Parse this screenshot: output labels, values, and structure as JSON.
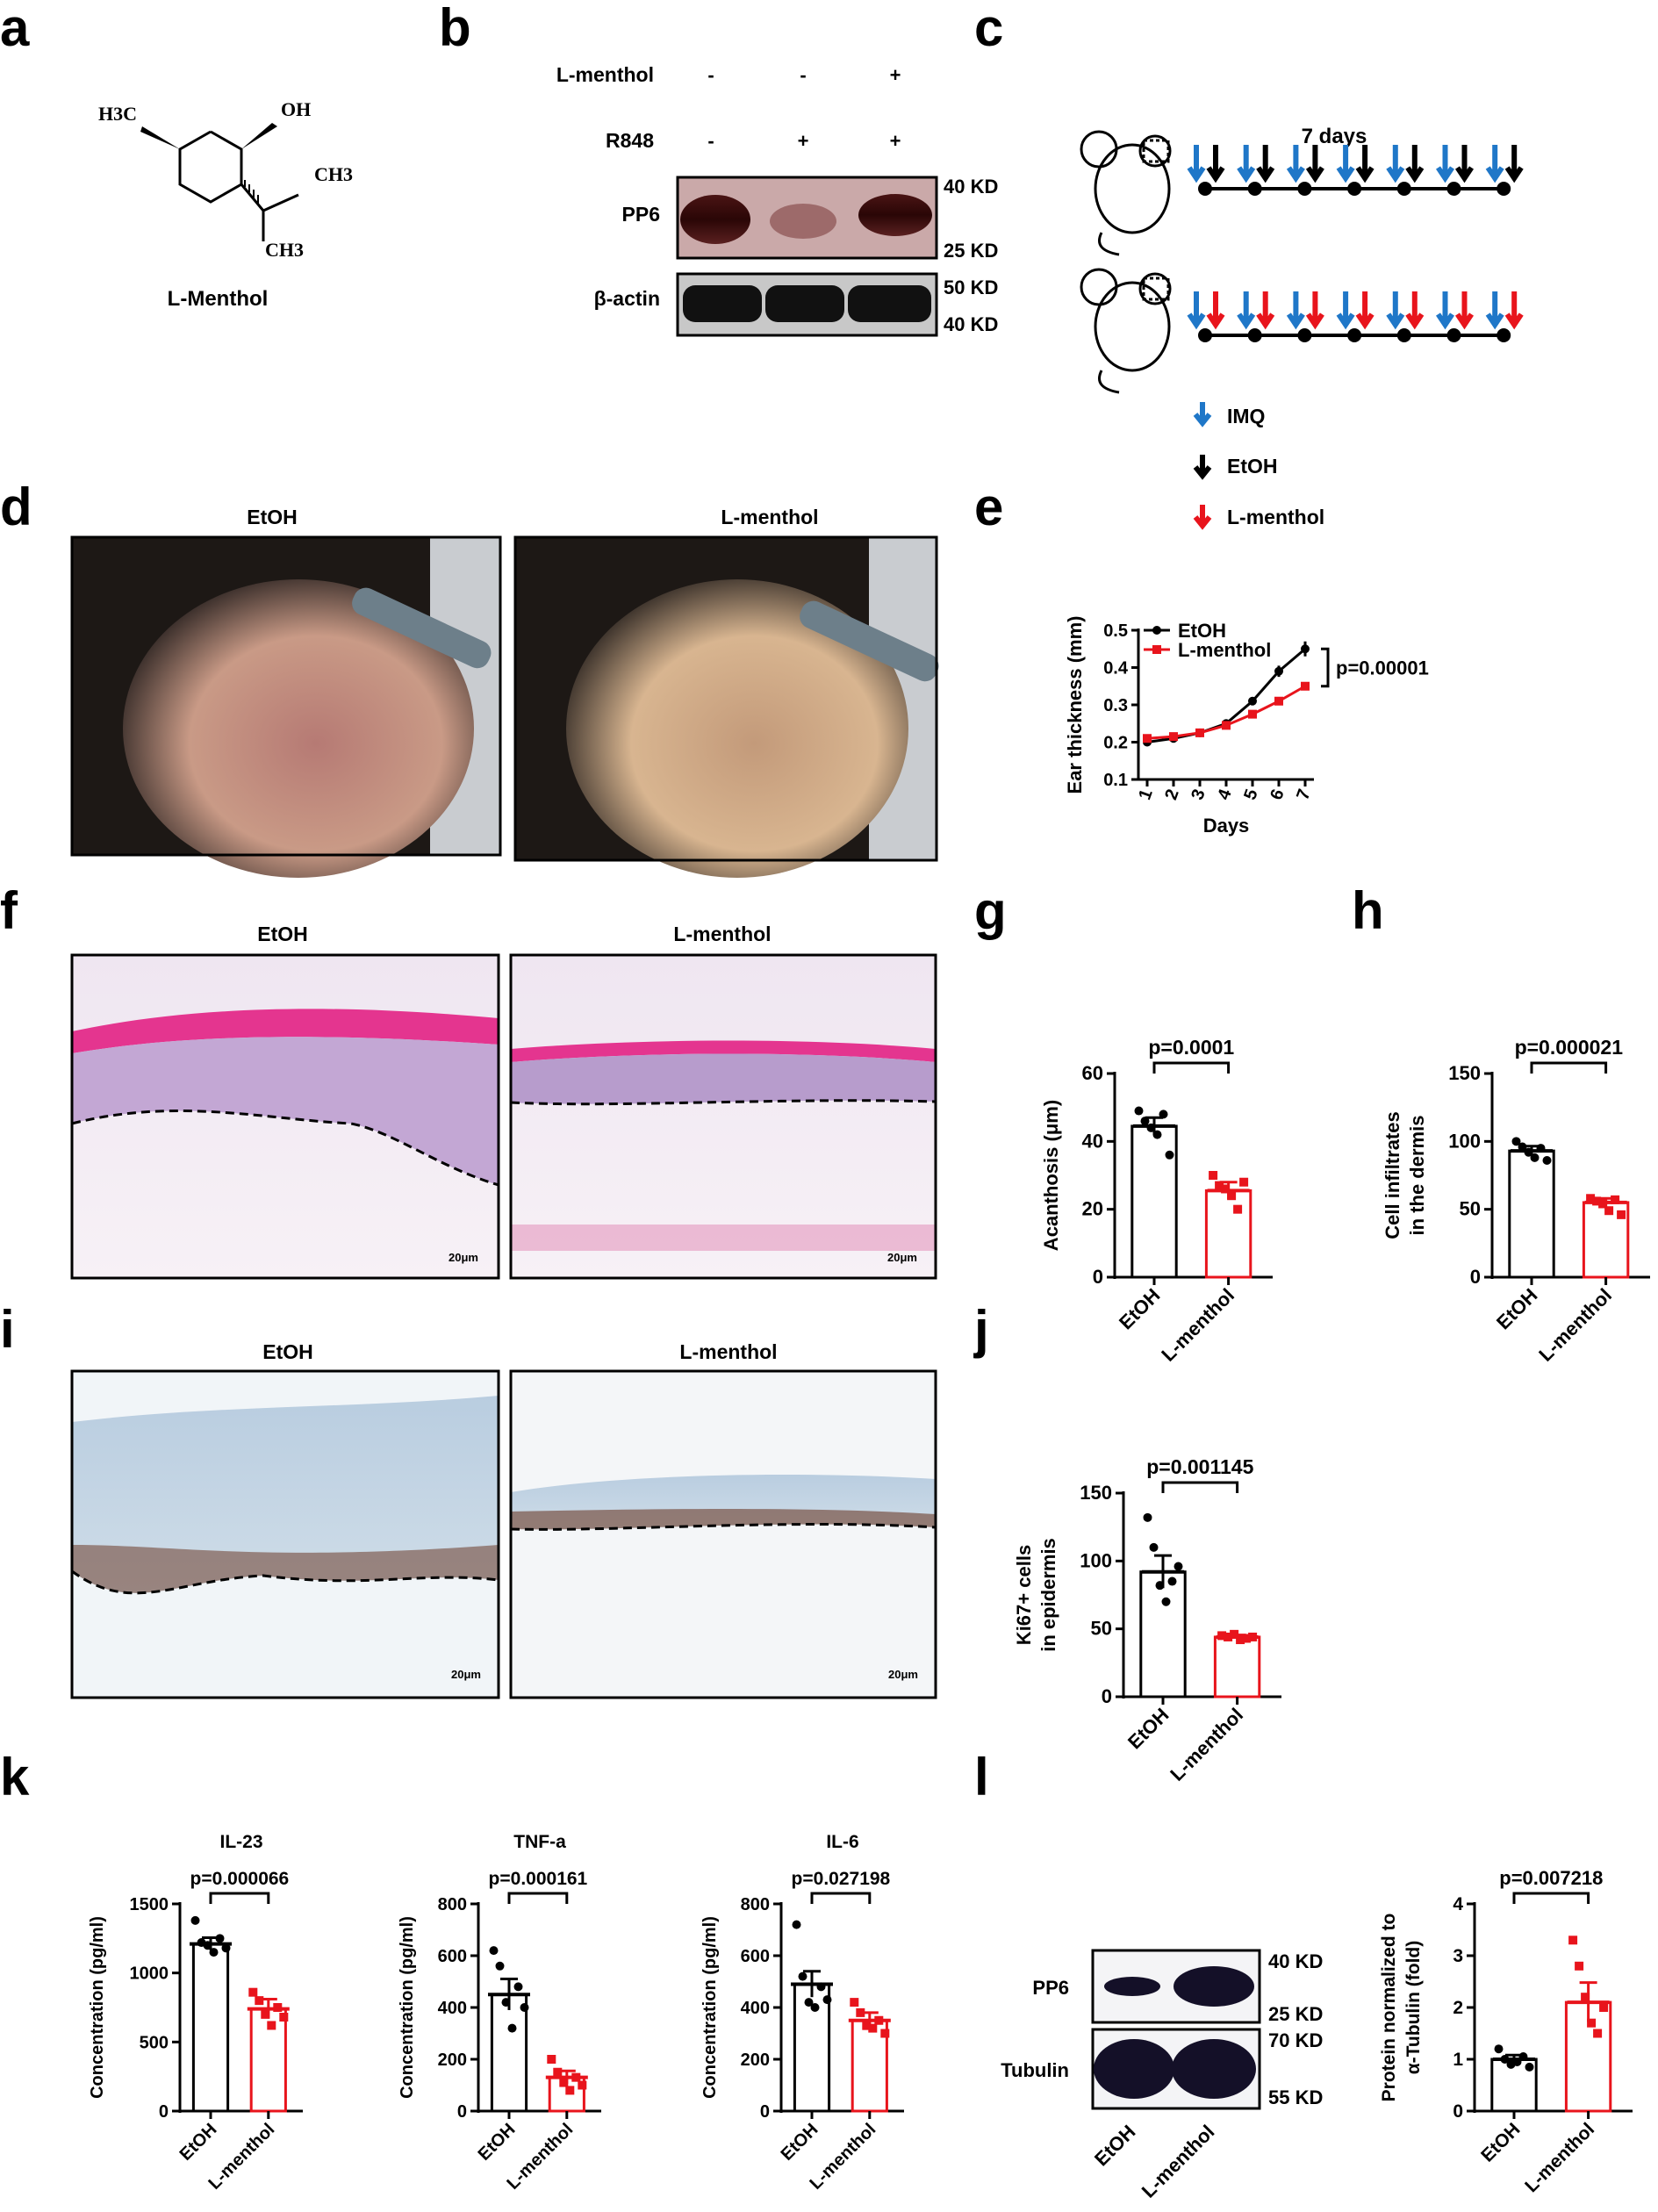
{
  "panel_letters": [
    "a",
    "b",
    "c",
    "d",
    "e",
    "f",
    "g",
    "h",
    "i",
    "j",
    "k",
    "l"
  ],
  "a": {
    "name": "L-Menthol",
    "atoms": {
      "h3c": "H3C",
      "oh": "OH",
      "ch3_top": "CH3",
      "ch3_bottom": "CH3"
    }
  },
  "b": {
    "row_labels": [
      "L-menthol",
      "R848"
    ],
    "signs": {
      "l_menthol": [
        "-",
        "-",
        "+"
      ],
      "r848": [
        "-",
        "+",
        "+"
      ]
    },
    "blots": [
      {
        "label": "PP6",
        "kd_top": "40 KD",
        "kd_bottom": "25 KD"
      },
      {
        "label": "β-actin",
        "kd_top": "50 KD",
        "kd_bottom": "40 KD"
      }
    ]
  },
  "c": {
    "duration": "7 days",
    "legend": [
      "IMQ",
      "EtOH",
      "L-menthol"
    ],
    "colors": {
      "imq": "#1f77c8",
      "etoh": "#000000",
      "menthol": "#e8141c"
    }
  },
  "d": {
    "titles": [
      "EtOH",
      "L-menthol"
    ]
  },
  "f": {
    "titles": [
      "EtOH",
      "L-menthol"
    ],
    "scale": "20μm"
  },
  "i": {
    "titles": [
      "EtOH",
      "L-menthol"
    ],
    "scale": "20μm"
  },
  "l": {
    "blots": [
      {
        "label": "PP6",
        "kd_top": "40 KD",
        "kd_bottom": "25 KD"
      },
      {
        "label": "Tubulin",
        "kd_top": "70 KD",
        "kd_bottom": "55 KD"
      }
    ],
    "lanes": [
      "EtOH",
      "L-menthol"
    ]
  },
  "chart_data": [
    {
      "panel": "e",
      "type": "line",
      "xlabel": "Days",
      "ylabel": "Ear thickness (mm)",
      "x": [
        1,
        2,
        3,
        4,
        5,
        6,
        7
      ],
      "ylim": [
        0.1,
        0.5
      ],
      "yticks": [
        "0.1",
        "0.2",
        "0.3",
        "0.4",
        "0.5"
      ],
      "series": [
        {
          "name": "EtOH",
          "color": "#000000",
          "values": [
            0.2,
            0.21,
            0.225,
            0.25,
            0.31,
            0.39,
            0.45
          ]
        },
        {
          "name": "L-menthol",
          "color": "#e8141c",
          "values": [
            0.21,
            0.215,
            0.225,
            0.245,
            0.275,
            0.31,
            0.35
          ]
        }
      ],
      "annotation": "p=0.00001"
    },
    {
      "panel": "g",
      "type": "bar",
      "ylabel": "Acanthosis (μm)",
      "categories": [
        "EtOH",
        "L-menthol"
      ],
      "values": [
        44.5,
        25.5
      ],
      "errors": [
        2.5,
        2.5
      ],
      "points": [
        [
          49,
          46,
          44,
          42,
          48,
          36
        ],
        [
          30,
          27,
          26,
          24,
          20,
          28
        ]
      ],
      "ylim": [
        0,
        60
      ],
      "yticks": [
        "0",
        "20",
        "40",
        "60"
      ],
      "annotation": "p=0.0001"
    },
    {
      "panel": "h",
      "type": "bar",
      "ylabel_lines": [
        "Cell infiltrates",
        "in the dermis"
      ],
      "categories": [
        "EtOH",
        "L-menthol"
      ],
      "values": [
        93,
        55
      ],
      "errors": [
        3.5,
        3
      ],
      "points": [
        [
          100,
          96,
          92,
          88,
          95,
          86
        ],
        [
          58,
          56,
          54,
          49,
          57,
          46
        ]
      ],
      "ylim": [
        0,
        150
      ],
      "yticks": [
        "0",
        "50",
        "100",
        "150"
      ],
      "annotation": "p=0.000021"
    },
    {
      "panel": "j",
      "type": "bar",
      "ylabel_lines": [
        "Ki67+ cells",
        "in epidermis"
      ],
      "categories": [
        "EtOH",
        "L-menthol"
      ],
      "values": [
        92,
        44
      ],
      "errors": [
        12,
        1.5
      ],
      "points": [
        [
          132,
          110,
          82,
          70,
          85,
          96
        ],
        [
          45,
          44,
          46,
          42,
          43,
          44
        ]
      ],
      "ylim": [
        0,
        150
      ],
      "yticks": [
        "0",
        "50",
        "100",
        "150"
      ],
      "annotation": "p=0.001145"
    },
    {
      "panel": "k",
      "type": "bar",
      "title": "IL-23",
      "ylabel": "Concentration (pg/ml)",
      "categories": [
        "EtOH",
        "L-menthol"
      ],
      "values": [
        1210,
        740
      ],
      "errors": [
        45,
        70
      ],
      "points": [
        [
          1380,
          1220,
          1200,
          1150,
          1250,
          1180
        ],
        [
          860,
          800,
          700,
          620,
          750,
          680
        ]
      ],
      "ylim": [
        0,
        1500
      ],
      "yticks": [
        "0",
        "500",
        "1000",
        "1500"
      ],
      "annotation": "p=0.000066"
    },
    {
      "panel": "k",
      "type": "bar",
      "title": "TNF-a",
      "ylabel": "Concentration (pg/ml)",
      "categories": [
        "EtOH",
        "L-menthol"
      ],
      "values": [
        450,
        130
      ],
      "errors": [
        60,
        25
      ],
      "points": [
        [
          620,
          560,
          420,
          320,
          480,
          400
        ],
        [
          200,
          150,
          110,
          80,
          130,
          100
        ]
      ],
      "ylim": [
        0,
        800
      ],
      "yticks": [
        "0",
        "200",
        "400",
        "600",
        "800"
      ],
      "annotation": "p=0.000161"
    },
    {
      "panel": "k",
      "type": "bar",
      "title": "IL-6",
      "ylabel": "Concentration (pg/ml)",
      "categories": [
        "EtOH",
        "L-menthol"
      ],
      "values": [
        490,
        350
      ],
      "errors": [
        50,
        30
      ],
      "points": [
        [
          720,
          520,
          420,
          400,
          480,
          430
        ],
        [
          420,
          380,
          330,
          320,
          350,
          300
        ]
      ],
      "ylim": [
        0,
        800
      ],
      "yticks": [
        "0",
        "200",
        "400",
        "600",
        "800"
      ],
      "annotation": "p=0.027198"
    },
    {
      "panel": "l",
      "type": "bar",
      "ylabel_lines": [
        "Protein normalized to",
        "α-Tubulin (fold)"
      ],
      "categories": [
        "EtOH",
        "L-menthol"
      ],
      "values": [
        1.0,
        2.1
      ],
      "errors": [
        0.08,
        0.38
      ],
      "points": [
        [
          1.2,
          1.0,
          0.9,
          0.95,
          1.05,
          0.85
        ],
        [
          3.3,
          2.8,
          2.2,
          1.7,
          1.5,
          2.0
        ]
      ],
      "ylim": [
        0,
        4
      ],
      "yticks": [
        "0",
        "1",
        "2",
        "3",
        "4"
      ],
      "annotation": "p=0.007218"
    }
  ]
}
